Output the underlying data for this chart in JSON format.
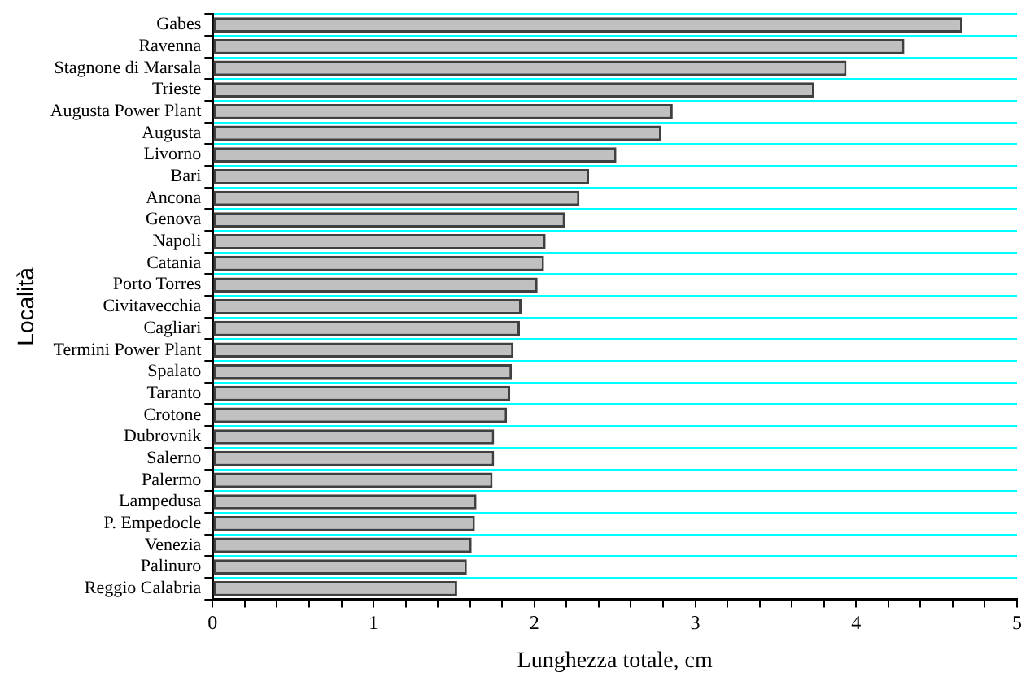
{
  "chart_data": {
    "type": "bar",
    "orientation": "horizontal",
    "xlabel": "Lunghezza totale, cm",
    "ylabel": "Località",
    "categories": [
      "Gabes",
      "Ravenna",
      "Stagnone di Marsala",
      "Trieste",
      "Augusta Power Plant",
      "Augusta",
      "Livorno",
      "Bari",
      "Ancona",
      "Genova",
      "Napoli",
      "Catania",
      "Porto Torres",
      "Civitavecchia",
      "Cagliari",
      "Termini Power Plant",
      "Spalato",
      "Taranto",
      "Crotone",
      "Dubrovnik",
      "Salerno",
      "Palermo",
      "Lampedusa",
      "P. Empedocle",
      "Venezia",
      "Palinuro",
      "Reggio Calabria"
    ],
    "values": [
      4.66,
      4.3,
      3.94,
      3.74,
      2.86,
      2.79,
      2.51,
      2.34,
      2.28,
      2.19,
      2.07,
      2.06,
      2.02,
      1.92,
      1.91,
      1.87,
      1.86,
      1.85,
      1.83,
      1.75,
      1.75,
      1.74,
      1.64,
      1.63,
      1.61,
      1.58,
      1.52
    ],
    "color": "#c0c0c0",
    "xlim": [
      0,
      5
    ],
    "xticks": [
      0,
      {
        "value": 0.2,
        "label": null
      },
      {
        "value": 0.4,
        "label": null
      },
      {
        "value": 0.6,
        "label": null
      },
      {
        "value": 0.8,
        "label": null
      },
      1,
      {
        "value": 1.2,
        "label": null
      },
      {
        "value": 1.4,
        "label": null
      },
      {
        "value": 1.6,
        "label": null
      },
      {
        "value": 1.8,
        "label": null
      },
      2,
      {
        "value": 2.2,
        "label": null
      },
      {
        "value": 2.4,
        "label": null
      },
      {
        "value": 2.6,
        "label": null
      },
      {
        "value": 2.8,
        "label": null
      },
      3,
      {
        "value": 3.2,
        "label": null
      },
      {
        "value": 3.4,
        "label": null
      },
      {
        "value": 3.6,
        "label": null
      },
      {
        "value": 3.8,
        "label": null
      },
      4,
      {
        "value": 4.2,
        "label": null
      },
      {
        "value": 4.4,
        "label": null
      },
      {
        "value": 4.6,
        "label": null
      },
      {
        "value": 4.8,
        "label": null
      },
      5
    ],
    "grid": "y",
    "legend": false
  }
}
